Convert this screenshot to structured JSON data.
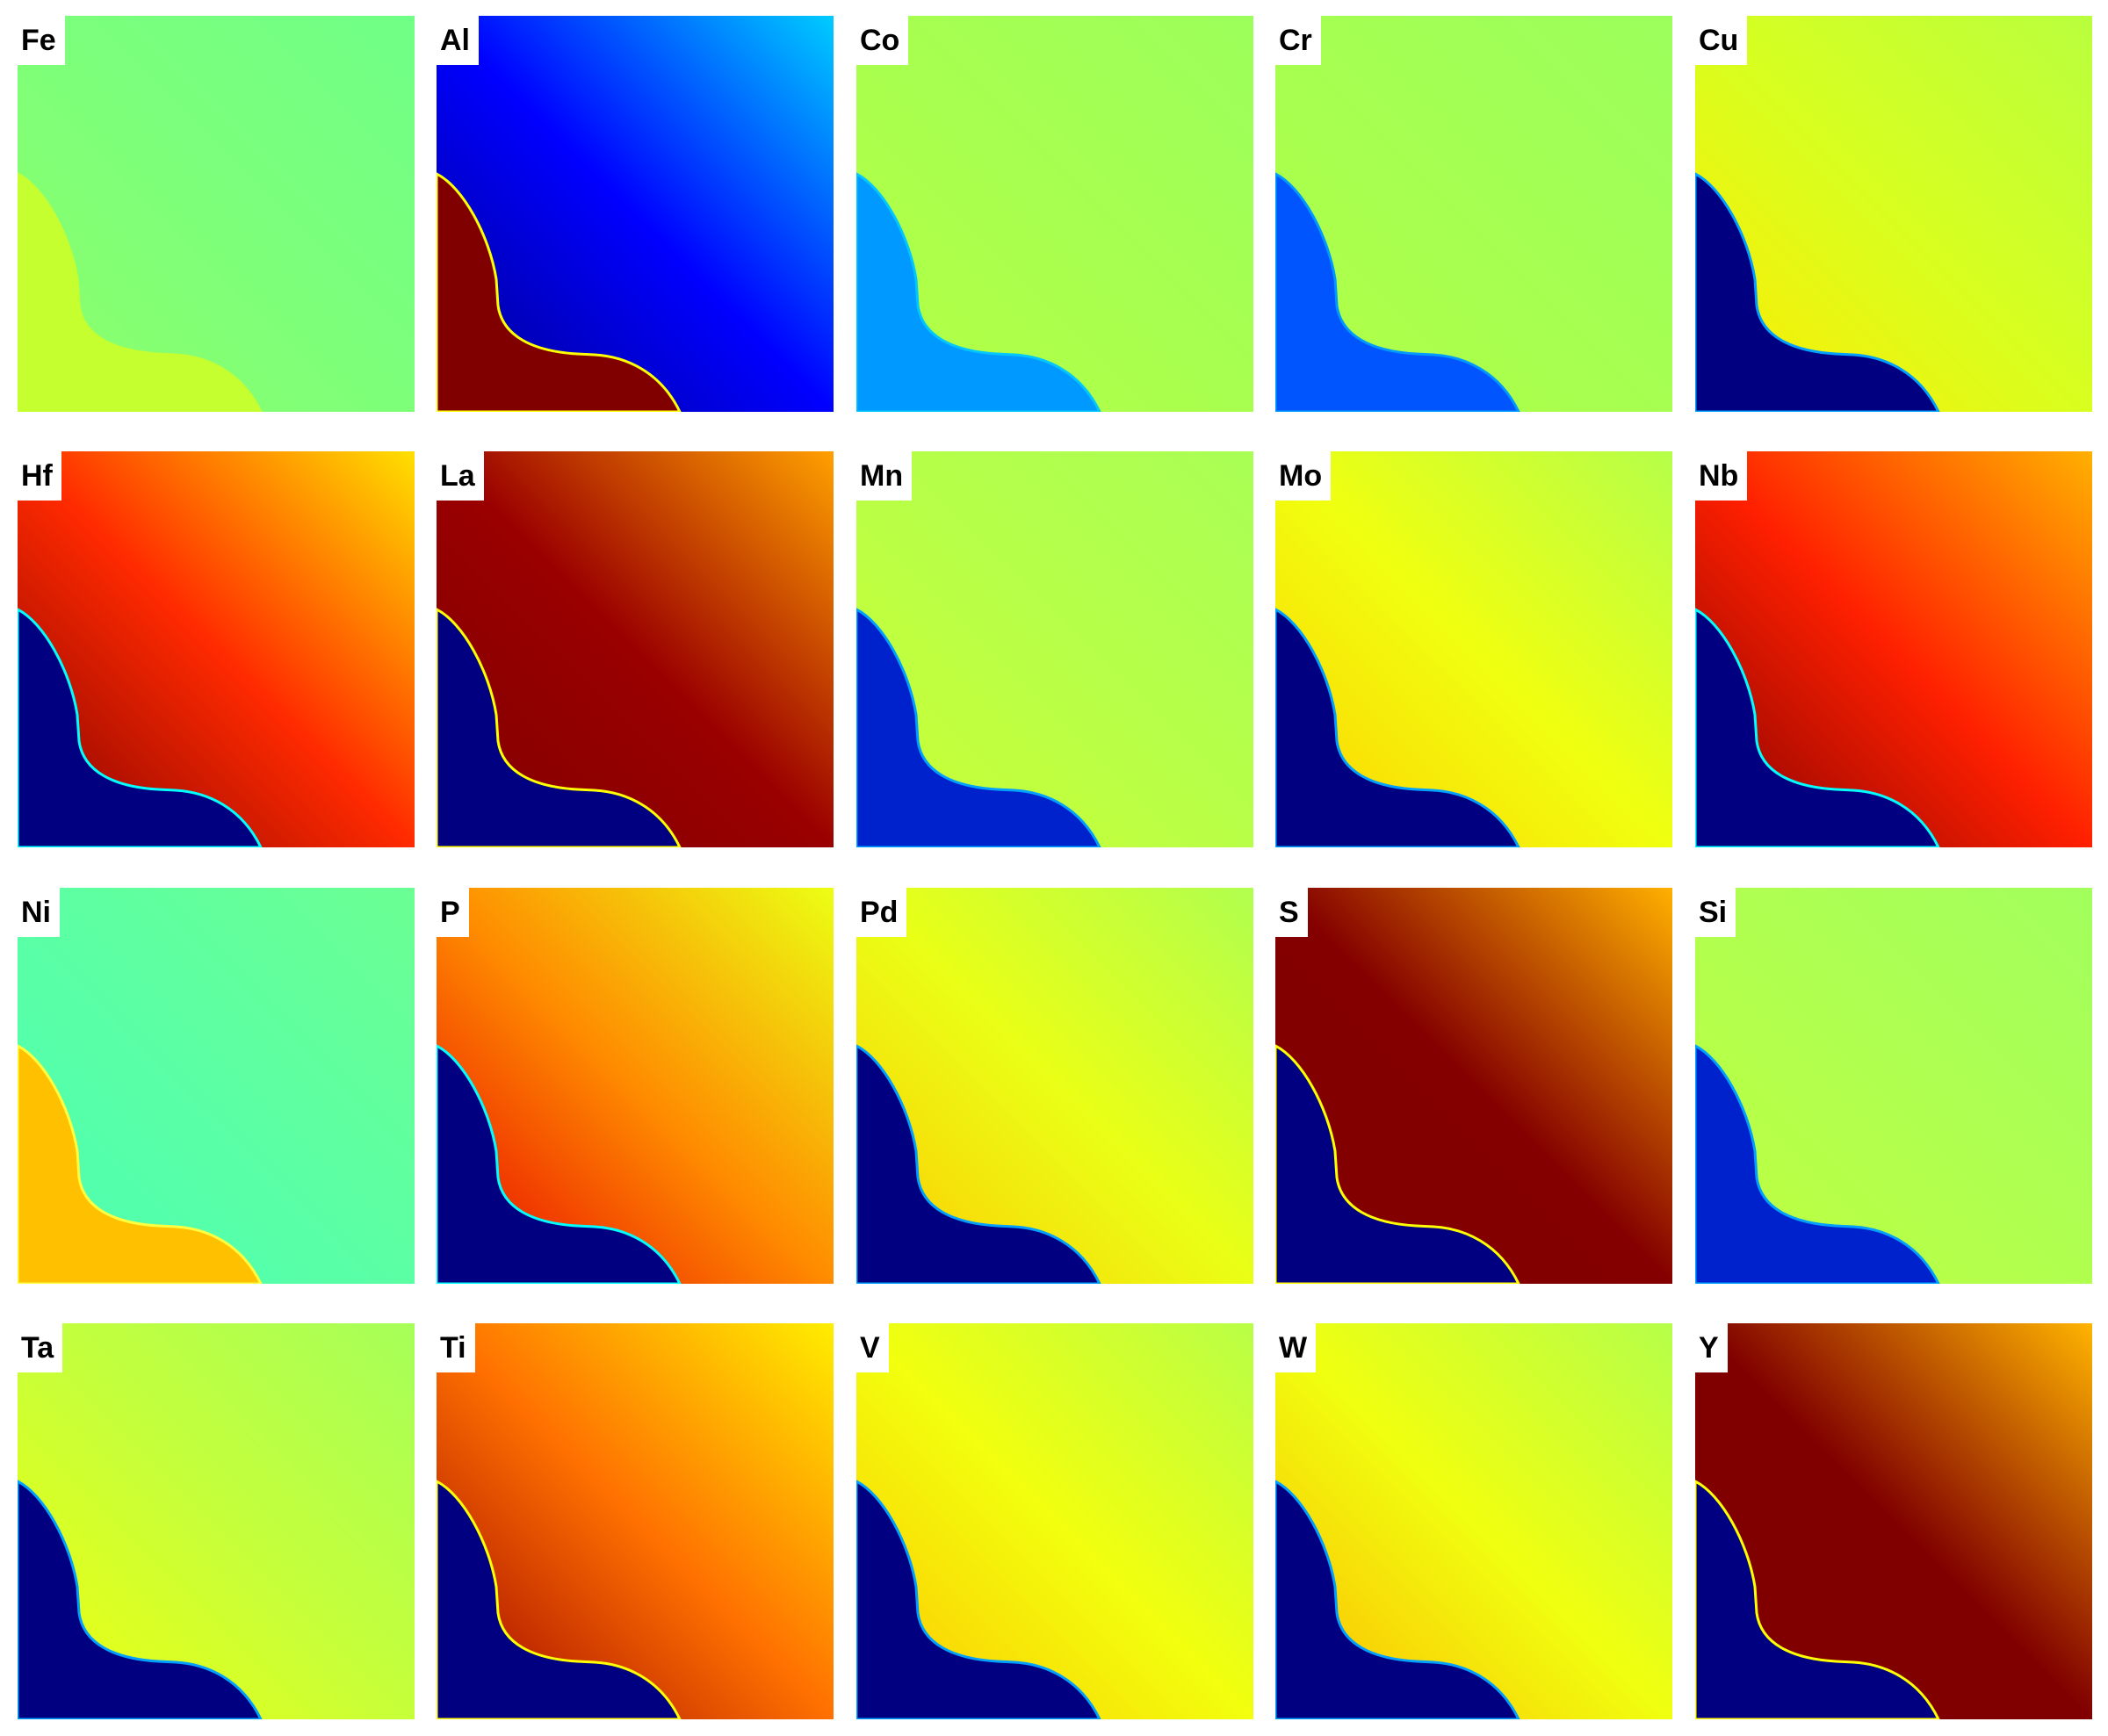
{
  "colormap": "jet",
  "panels": [
    {
      "label": "Fe",
      "inside": "#c6ff30",
      "bg": [
        "#8dff6a",
        "#7dff7a",
        "#70ff87"
      ],
      "edge": "#c6ff30"
    },
    {
      "label": "Al",
      "inside": "#800000",
      "bg": [
        "#00008f",
        "#0000ff",
        "#00ccff"
      ],
      "edge": "#ffff00"
    },
    {
      "label": "Co",
      "inside": "#0099ff",
      "bg": [
        "#b5ff42",
        "#a8ff4f",
        "#9cff5b"
      ],
      "edge": "#00c8ff"
    },
    {
      "label": "Cr",
      "inside": "#0055ff",
      "bg": [
        "#b2ff45",
        "#a6ff51",
        "#9bff5c"
      ],
      "edge": "#0099ff"
    },
    {
      "label": "Cu",
      "inside": "#000080",
      "bg": [
        "#ffea00",
        "#d8ff1f",
        "#b9ff3e"
      ],
      "edge": "#00a0ff"
    },
    {
      "label": "Hf",
      "inside": "#000080",
      "bg": [
        "#800000",
        "#ff2a00",
        "#ffe000"
      ],
      "edge": "#00ffff"
    },
    {
      "label": "La",
      "inside": "#000080",
      "bg": [
        "#800000",
        "#9a0000",
        "#ffa000"
      ],
      "edge": "#ffff00"
    },
    {
      "label": "Mn",
      "inside": "#0022cc",
      "bg": [
        "#ccff33",
        "#b8ff47",
        "#a9ff55"
      ],
      "edge": "#00a0ff"
    },
    {
      "label": "Mo",
      "inside": "#000080",
      "bg": [
        "#ffd000",
        "#f0ff0f",
        "#b5ff4a"
      ],
      "edge": "#00a0ff"
    },
    {
      "label": "Nb",
      "inside": "#000080",
      "bg": [
        "#800000",
        "#ff2000",
        "#ffb000"
      ],
      "edge": "#00ffff"
    },
    {
      "label": "Ni",
      "inside": "#ffc000",
      "bg": [
        "#4dffb3",
        "#5bffa4",
        "#6bff93"
      ],
      "edge": "#ffff40"
    },
    {
      "label": "P",
      "inside": "#000080",
      "bg": [
        "#e60000",
        "#ff8c00",
        "#ecff13"
      ],
      "edge": "#00ffff"
    },
    {
      "label": "Pd",
      "inside": "#000080",
      "bg": [
        "#ffc800",
        "#eaff15",
        "#b0ff4f"
      ],
      "edge": "#00a0ff"
    },
    {
      "label": "S",
      "inside": "#000080",
      "bg": [
        "#800000",
        "#840000",
        "#ffb000"
      ],
      "edge": "#ffff00"
    },
    {
      "label": "Si",
      "inside": "#0022cc",
      "bg": [
        "#c0ff3f",
        "#b0ff4f",
        "#a2ff5d"
      ],
      "edge": "#00a0ff"
    },
    {
      "label": "Ta",
      "inside": "#000080",
      "bg": [
        "#f2ff0d",
        "#c6ff39",
        "#a6ff59"
      ],
      "edge": "#00a0ff"
    },
    {
      "label": "Ti",
      "inside": "#000080",
      "bg": [
        "#9a0000",
        "#ff7000",
        "#ffee00"
      ],
      "edge": "#ffff00"
    },
    {
      "label": "V",
      "inside": "#000080",
      "bg": [
        "#ffc400",
        "#f2ff0d",
        "#b8ff47"
      ],
      "edge": "#00a0ff"
    },
    {
      "label": "W",
      "inside": "#000080",
      "bg": [
        "#ffb800",
        "#f0ff0f",
        "#b5ff4a"
      ],
      "edge": "#00a0ff"
    },
    {
      "label": "Y",
      "inside": "#000080",
      "bg": [
        "#800000",
        "#800000",
        "#ffb400"
      ],
      "edge": "#ffff00"
    }
  ]
}
